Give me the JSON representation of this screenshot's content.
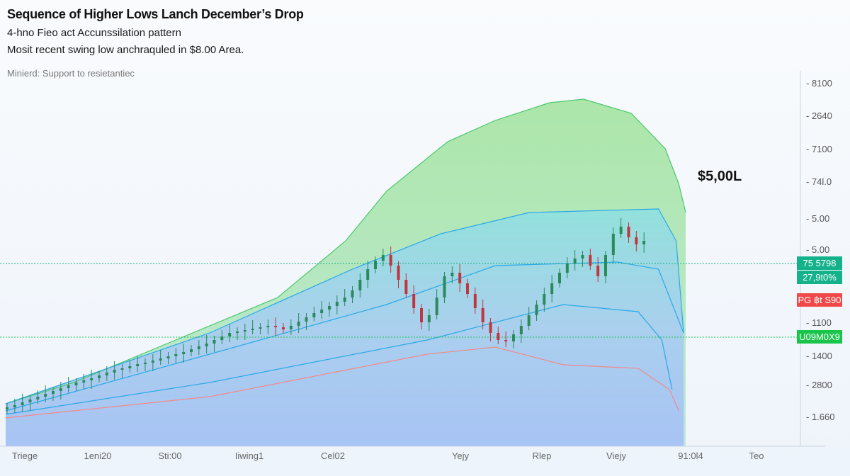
{
  "chart_data": {
    "type": "line",
    "title": "Sequence of Higher Lows Lanch December’s Drop",
    "subtitle": "4-hno Fieo act Accunssilation pattern",
    "description_line": "Mosit recent swing low anchraquled in $8.00 Area.",
    "note": "Minierd: Support to resietantiec",
    "annotation": "$5,00L",
    "x_range": [
      0,
      118
    ],
    "y_range": [
      0,
      630
    ],
    "grid": false,
    "y_tick_labels": [
      "8100",
      "2640",
      "7100",
      "74l.0",
      "5.00",
      "5.00",
      "1100",
      "1400",
      "2800",
      "1.660"
    ],
    "x_tick_labels": [
      "Triege",
      "1eni20",
      "Sti:00",
      "Iiwing1",
      "Cel02",
      "Yejy",
      "Rlep",
      "Viejy",
      "91:0l4",
      "Teo"
    ],
    "price_tags": [
      {
        "label": "75 5798",
        "value": 258,
        "color": "#13b28a"
      },
      {
        "label": "27,9t0%",
        "value": 238,
        "color": "#13b28a"
      },
      {
        "label": "PG ฿t S90",
        "value": 206,
        "color": "#f04848"
      },
      {
        "label": "U09M0X9",
        "value": 154,
        "color": "#18c44a"
      }
    ],
    "reference_lines": [
      {
        "value": 258,
        "color": "#13b28a"
      },
      {
        "value": 154,
        "color": "#18c44a"
      }
    ],
    "colors": {
      "green_band": "#8fdc8a",
      "blue_fill": "#a9c4f5",
      "band_line": "#2aa8e8",
      "lower_line": "#f08a8a",
      "up_candle": "#2a8a5a",
      "down_candle": "#c0353f"
    },
    "series": [
      {
        "key": "upper_envelope",
        "points": [
          [
            0,
            60
          ],
          [
            10,
            90
          ],
          [
            25,
            150
          ],
          [
            40,
            210
          ],
          [
            50,
            290
          ],
          [
            56,
            360
          ],
          [
            65,
            430
          ],
          [
            72,
            460
          ],
          [
            80,
            485
          ],
          [
            85,
            490
          ],
          [
            92,
            470
          ],
          [
            97,
            420
          ],
          [
            99,
            370
          ],
          [
            100,
            330
          ]
        ]
      },
      {
        "key": "band_upper",
        "points": [
          [
            0,
            60
          ],
          [
            30,
            160
          ],
          [
            51,
            250
          ],
          [
            64,
            300
          ],
          [
            77,
            330
          ],
          [
            96,
            335
          ],
          [
            98.6,
            290
          ],
          [
            99.7,
            160
          ]
        ]
      },
      {
        "key": "band_mid",
        "points": [
          [
            0,
            50
          ],
          [
            30,
            130
          ],
          [
            56,
            200
          ],
          [
            72,
            255
          ],
          [
            90,
            260
          ],
          [
            96,
            250
          ],
          [
            99.7,
            160
          ]
        ]
      },
      {
        "key": "band_lower",
        "points": [
          [
            0,
            45
          ],
          [
            30,
            90
          ],
          [
            62,
            150
          ],
          [
            82,
            200
          ],
          [
            93,
            190
          ],
          [
            96.5,
            150
          ],
          [
            98,
            80
          ]
        ]
      },
      {
        "key": "lower_line",
        "points": [
          [
            0,
            40
          ],
          [
            30,
            70
          ],
          [
            62,
            130
          ],
          [
            72,
            140
          ],
          [
            82,
            115
          ],
          [
            93,
            110
          ],
          [
            97.6,
            80
          ],
          [
            99,
            50
          ]
        ]
      }
    ],
    "price_closes": [
      55,
      58,
      62,
      66,
      70,
      74,
      78,
      82,
      86,
      90,
      93,
      96,
      100,
      104,
      108,
      110,
      113,
      116,
      118,
      121,
      124,
      127,
      130,
      133,
      137,
      141,
      145,
      150,
      155,
      160,
      162,
      164,
      166,
      168,
      170,
      168,
      165,
      170,
      176,
      182,
      188,
      193,
      198,
      204,
      210,
      220,
      235,
      250,
      262,
      270,
      255,
      235,
      215,
      195,
      175,
      185,
      210,
      240,
      245,
      230,
      215,
      195,
      175,
      160,
      150,
      148,
      158,
      170,
      185,
      200,
      215,
      230,
      245,
      258,
      265,
      270,
      255,
      240,
      270,
      300,
      310,
      295,
      285,
      290
    ]
  }
}
